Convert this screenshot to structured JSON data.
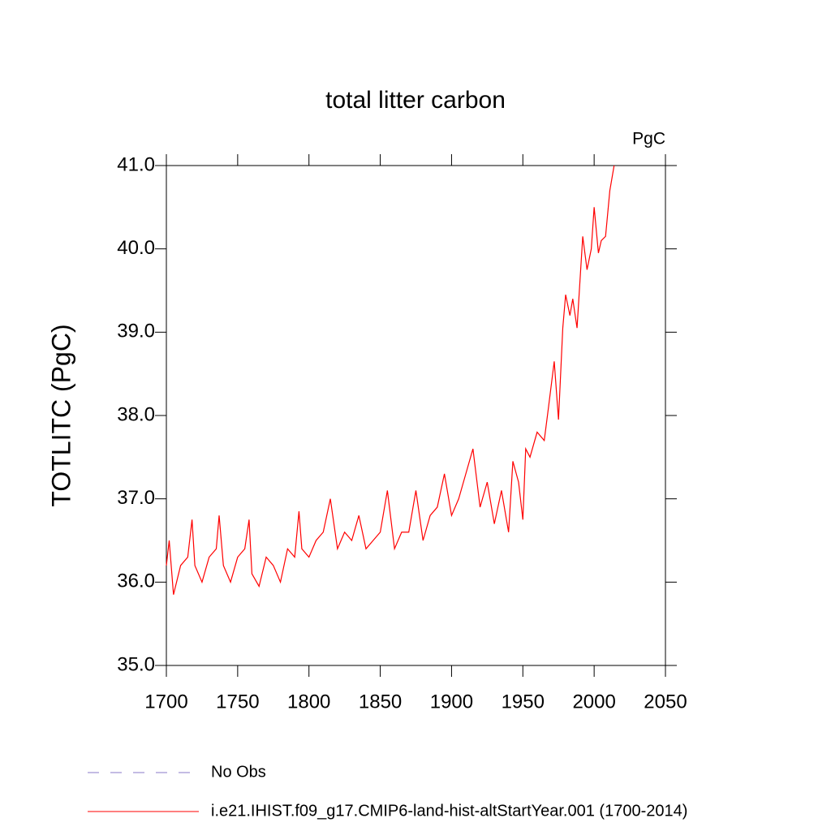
{
  "chart_data": {
    "type": "line",
    "title": "total litter carbon",
    "units": "PgC",
    "y_label": "TOTLITC  (PgC)",
    "x": [
      1700,
      1702,
      1705,
      1710,
      1715,
      1718,
      1720,
      1725,
      1730,
      1735,
      1737,
      1740,
      1745,
      1750,
      1755,
      1758,
      1760,
      1765,
      1770,
      1775,
      1780,
      1785,
      1790,
      1793,
      1795,
      1800,
      1805,
      1810,
      1815,
      1820,
      1825,
      1830,
      1835,
      1840,
      1845,
      1850,
      1855,
      1860,
      1865,
      1870,
      1875,
      1880,
      1885,
      1890,
      1895,
      1900,
      1905,
      1910,
      1915,
      1920,
      1925,
      1930,
      1935,
      1940,
      1943,
      1947,
      1950,
      1952,
      1955,
      1960,
      1965,
      1968,
      1972,
      1975,
      1978,
      1980,
      1983,
      1985,
      1988,
      1992,
      1995,
      1998,
      2000,
      2003,
      2005,
      2008,
      2011,
      2014
    ],
    "series": [
      {
        "name": "No Obs",
        "color": "#8878c8",
        "dashed": true,
        "values": [
          null,
          null,
          null,
          null,
          null,
          null,
          null,
          null,
          null,
          null,
          null,
          null,
          null,
          null,
          null,
          null,
          null,
          null,
          null,
          null,
          null,
          null,
          null,
          null,
          null,
          null,
          null,
          null,
          null,
          null,
          null,
          null,
          null,
          null,
          null,
          null,
          null,
          null,
          null,
          null,
          null,
          null,
          null,
          null,
          null,
          null,
          null,
          null,
          null,
          null,
          null,
          null,
          null,
          null,
          null,
          null,
          null,
          null,
          null,
          null,
          null,
          null,
          null,
          null,
          null,
          null,
          null,
          null,
          null,
          null,
          null,
          null,
          null,
          null,
          null,
          null,
          null,
          null
        ]
      },
      {
        "name": "i.e21.IHIST.f09_g17.CMIP6-land-hist-altStartYear.001 (1700-2014)",
        "color": "#ff0000",
        "dashed": false,
        "values": [
          36.2,
          36.5,
          35.85,
          36.2,
          36.3,
          36.75,
          36.2,
          36.0,
          36.3,
          36.4,
          36.8,
          36.2,
          36.0,
          36.3,
          36.4,
          36.75,
          36.1,
          35.95,
          36.3,
          36.2,
          36.0,
          36.4,
          36.3,
          36.85,
          36.4,
          36.3,
          36.5,
          36.6,
          37.0,
          36.4,
          36.6,
          36.5,
          36.8,
          36.4,
          36.5,
          36.6,
          37.1,
          36.4,
          36.6,
          36.6,
          37.1,
          36.5,
          36.8,
          36.9,
          37.3,
          36.8,
          37.0,
          37.3,
          37.6,
          36.9,
          37.2,
          36.7,
          37.1,
          36.6,
          37.45,
          37.2,
          36.75,
          37.6,
          37.5,
          37.8,
          37.7,
          38.1,
          38.65,
          37.95,
          39.05,
          39.45,
          39.2,
          39.4,
          39.05,
          40.15,
          39.75,
          40.0,
          40.5,
          39.95,
          40.1,
          40.15,
          40.7,
          41.0
        ]
      }
    ],
    "xlim": [
      1700,
      2050
    ],
    "xticks": [
      1700,
      1750,
      1800,
      1850,
      1900,
      1950,
      2000,
      2050
    ],
    "ylim": [
      35,
      41
    ],
    "yticks": [
      {
        "value": 35,
        "label": "35.0"
      },
      {
        "value": 36,
        "label": "36.0"
      },
      {
        "value": 37,
        "label": "37.0"
      },
      {
        "value": 38,
        "label": "38.0"
      },
      {
        "value": 39,
        "label": "39.0"
      },
      {
        "value": 40,
        "label": "40.0"
      },
      {
        "value": 41,
        "label": "41.0"
      }
    ]
  }
}
